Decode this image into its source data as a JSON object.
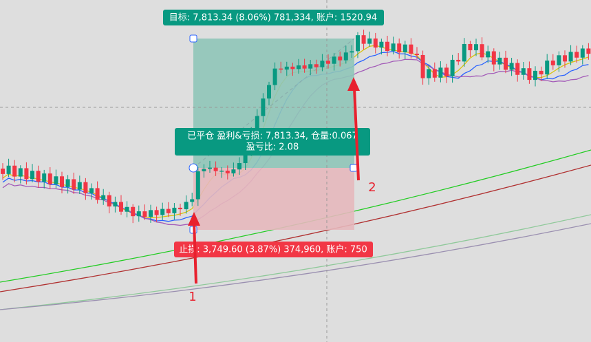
{
  "labels": {
    "target": "目标: 7,813.34 (8.06%) 781,334, 账户: 1520.94",
    "closed": {
      "line1": "已平仓 盈利&亏损: 7,813.34, 仓量:0.067",
      "line2": "盈亏比: 2.08"
    },
    "stop": "止损: 3,749.60 (3.87%) 374,960, 账户: 750"
  },
  "arrows": [
    "1",
    "2"
  ]
}
